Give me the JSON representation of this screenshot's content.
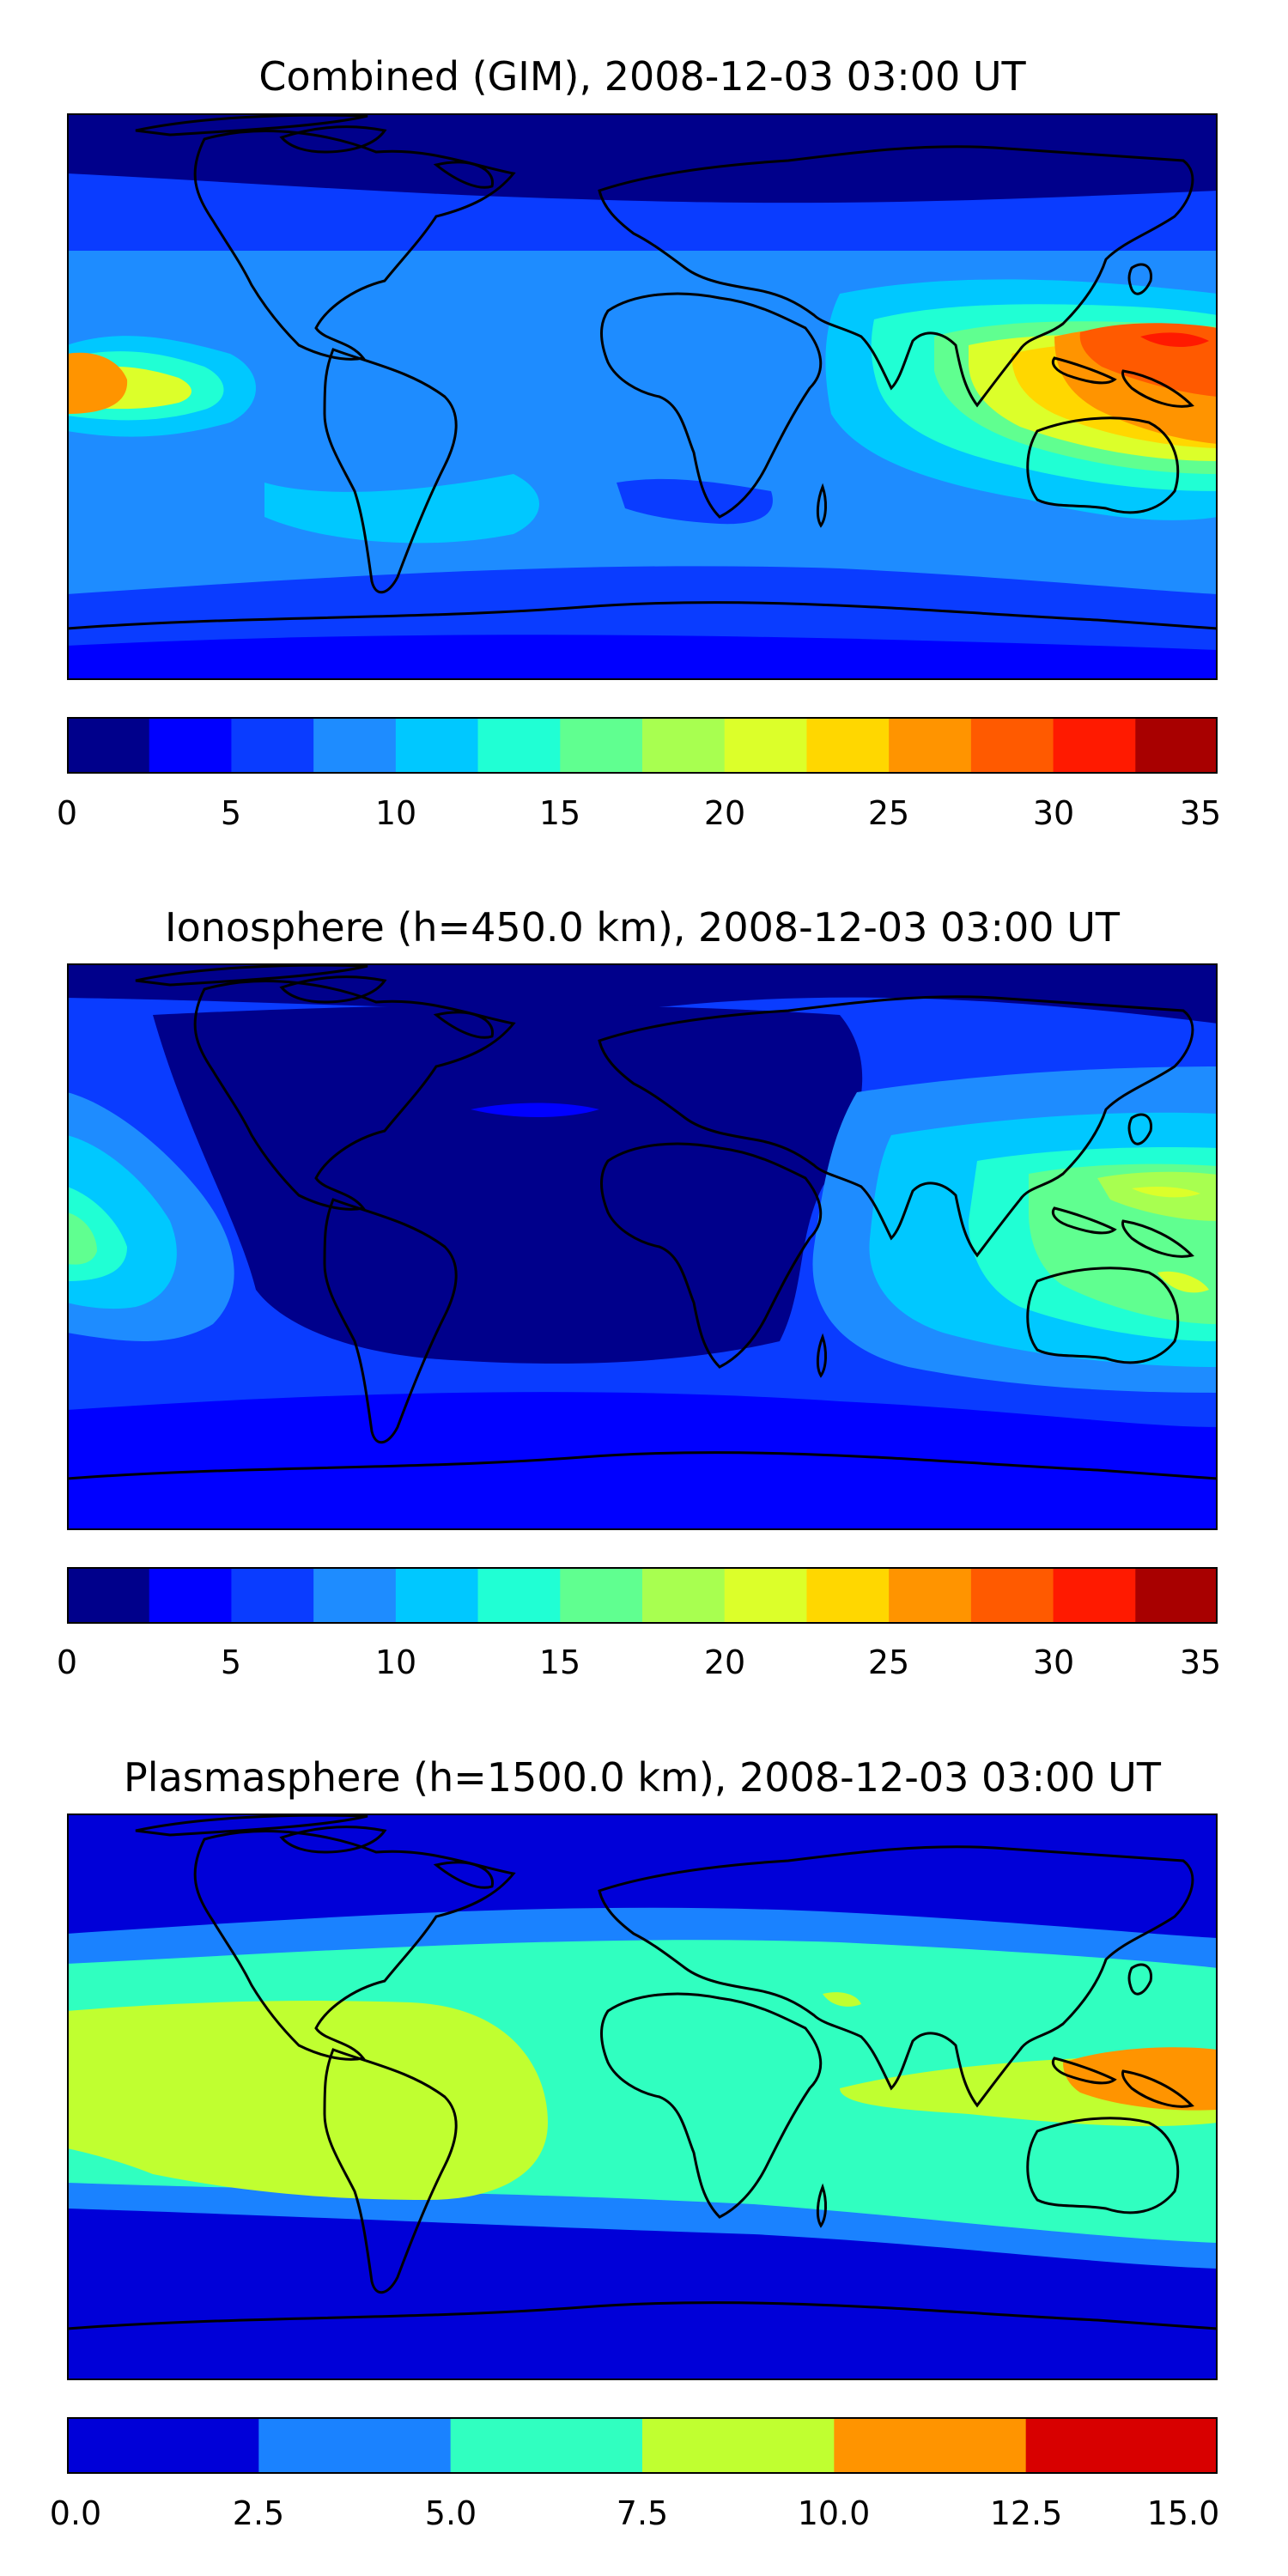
{
  "panels": [
    {
      "title": "Combined (GIM), 2008-12-03 03:00 UT",
      "colorbar": {
        "colors": [
          "#00008b",
          "#0000ff",
          "#0a3cff",
          "#1e8cff",
          "#00c8ff",
          "#20ffd4",
          "#60ff90",
          "#a8ff50",
          "#dcff2a",
          "#ffd700",
          "#ff9400",
          "#ff5a00",
          "#ff1a00",
          "#a80000"
        ],
        "ticks": [
          "0",
          "5",
          "10",
          "15",
          "20",
          "25",
          "30",
          "35"
        ]
      }
    },
    {
      "title": "Ionosphere  (h=450.0 km), 2008-12-03 03:00 UT",
      "colorbar": {
        "colors": [
          "#00008b",
          "#0000ff",
          "#0a3cff",
          "#1e8cff",
          "#00c8ff",
          "#20ffd4",
          "#60ff90",
          "#a8ff50",
          "#dcff2a",
          "#ffd700",
          "#ff9400",
          "#ff5a00",
          "#ff1a00",
          "#a80000"
        ],
        "ticks": [
          "0",
          "5",
          "10",
          "15",
          "20",
          "25",
          "30",
          "35"
        ]
      }
    },
    {
      "title": "Plasmasphere (h=1500.0 km), 2008-12-03 03:00 UT",
      "colorbar": {
        "colors": [
          "#0000d8",
          "#1a82ff",
          "#30ffc0",
          "#c0ff30",
          "#ff9400",
          "#d80000"
        ],
        "ticks": [
          "0.0",
          "2.5",
          "5.0",
          "7.5",
          "10.0",
          "12.5",
          "15.0"
        ]
      }
    }
  ]
}
